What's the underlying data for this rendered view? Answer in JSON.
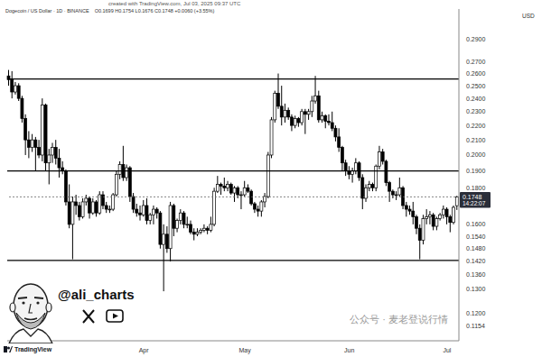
{
  "chart_data": {
    "type": "candlestick",
    "title": "Dogecoin / US Dollar · 1D · BINANCE",
    "subtitle": "created with TradingView.com, Jul 03, 2025 09:37 UTC",
    "quote": "O0.1699 H0.1754 L0.1676 C0.1748 +0.0060 (+3.55%)",
    "y_label": "USD",
    "categories": [
      null,
      null,
      null,
      null,
      null,
      null,
      null,
      null,
      null,
      null,
      null,
      null,
      null,
      null,
      null,
      null,
      null,
      null,
      null,
      null,
      null,
      null,
      null,
      null,
      null,
      null,
      null,
      null,
      null,
      null,
      null,
      null,
      null,
      null,
      null,
      null,
      null,
      null,
      null,
      null,
      "Apr",
      null,
      null,
      null,
      null,
      null,
      null,
      null,
      null,
      null,
      null,
      null,
      null,
      null,
      null,
      null,
      null,
      null,
      null,
      null,
      null,
      null,
      null,
      null,
      null,
      null,
      null,
      null,
      null,
      null,
      "May",
      null,
      null,
      null,
      null,
      null,
      null,
      null,
      null,
      null,
      null,
      null,
      null,
      null,
      null,
      null,
      null,
      null,
      null,
      null,
      null,
      null,
      null,
      null,
      null,
      null,
      null,
      null,
      null,
      null,
      null,
      "Jun",
      null,
      null,
      null,
      null,
      null,
      null,
      null,
      null,
      null,
      null,
      null,
      null,
      null,
      null,
      null,
      null,
      null,
      null,
      null,
      null,
      null,
      null,
      null,
      null,
      null,
      null,
      null,
      null,
      "Jul",
      null,
      null
    ],
    "ohlc": [
      [
        0.258,
        0.263,
        0.25,
        0.255
      ],
      [
        0.255,
        0.262,
        0.24,
        0.245
      ],
      [
        0.245,
        0.253,
        0.243,
        0.25
      ],
      [
        0.25,
        0.252,
        0.238,
        0.24
      ],
      [
        0.24,
        0.242,
        0.222,
        0.225
      ],
      [
        0.225,
        0.228,
        0.2,
        0.21
      ],
      [
        0.21,
        0.216,
        0.198,
        0.205
      ],
      [
        0.205,
        0.214,
        0.202,
        0.21
      ],
      [
        0.21,
        0.212,
        0.19,
        0.205
      ],
      [
        0.205,
        0.21,
        0.198,
        0.2
      ],
      [
        0.2,
        0.24,
        0.196,
        0.235
      ],
      [
        0.235,
        0.236,
        0.19,
        0.195
      ],
      [
        0.195,
        0.204,
        0.182,
        0.2
      ],
      [
        0.2,
        0.208,
        0.195,
        0.205
      ],
      [
        0.205,
        0.21,
        0.194,
        0.198
      ],
      [
        0.198,
        0.204,
        0.186,
        0.192
      ],
      [
        0.192,
        0.196,
        0.188,
        0.19
      ],
      [
        0.19,
        0.191,
        0.17,
        0.172
      ],
      [
        0.172,
        0.182,
        0.158,
        0.16
      ],
      [
        0.16,
        0.175,
        0.143,
        0.172
      ],
      [
        0.172,
        0.176,
        0.165,
        0.17
      ],
      [
        0.17,
        0.172,
        0.162,
        0.164
      ],
      [
        0.164,
        0.174,
        0.163,
        0.172
      ],
      [
        0.172,
        0.176,
        0.17,
        0.174
      ],
      [
        0.174,
        0.175,
        0.163,
        0.166
      ],
      [
        0.166,
        0.174,
        0.165,
        0.172
      ],
      [
        0.172,
        0.173,
        0.164,
        0.166
      ],
      [
        0.166,
        0.178,
        0.165,
        0.176
      ],
      [
        0.176,
        0.178,
        0.168,
        0.17
      ],
      [
        0.17,
        0.172,
        0.166,
        0.168
      ],
      [
        0.168,
        0.17,
        0.166,
        0.168
      ],
      [
        0.168,
        0.177,
        0.167,
        0.176
      ],
      [
        0.176,
        0.19,
        0.175,
        0.188
      ],
      [
        0.188,
        0.196,
        0.185,
        0.194
      ],
      [
        0.194,
        0.206,
        0.184,
        0.186
      ],
      [
        0.186,
        0.194,
        0.184,
        0.192
      ],
      [
        0.192,
        0.193,
        0.172,
        0.175
      ],
      [
        0.175,
        0.177,
        0.166,
        0.168
      ],
      [
        0.168,
        0.171,
        0.164,
        0.166
      ],
      [
        0.166,
        0.17,
        0.162,
        0.165
      ],
      [
        0.165,
        0.173,
        0.164,
        0.17
      ],
      [
        0.17,
        0.174,
        0.16,
        0.162
      ],
      [
        0.162,
        0.166,
        0.16,
        0.165
      ],
      [
        0.165,
        0.17,
        0.16,
        0.168
      ],
      [
        0.168,
        0.169,
        0.163,
        0.166
      ],
      [
        0.166,
        0.167,
        0.148,
        0.15
      ],
      [
        0.15,
        0.16,
        0.129,
        0.155
      ],
      [
        0.155,
        0.159,
        0.146,
        0.148
      ],
      [
        0.148,
        0.172,
        0.142,
        0.17
      ],
      [
        0.17,
        0.171,
        0.154,
        0.158
      ],
      [
        0.158,
        0.163,
        0.156,
        0.162
      ],
      [
        0.162,
        0.168,
        0.16,
        0.166
      ],
      [
        0.166,
        0.167,
        0.158,
        0.16
      ],
      [
        0.16,
        0.164,
        0.158,
        0.16
      ],
      [
        0.16,
        0.162,
        0.155,
        0.156
      ],
      [
        0.156,
        0.158,
        0.152,
        0.155
      ],
      [
        0.155,
        0.158,
        0.154,
        0.156
      ],
      [
        0.156,
        0.158,
        0.155,
        0.157
      ],
      [
        0.157,
        0.16,
        0.156,
        0.158
      ],
      [
        0.158,
        0.159,
        0.155,
        0.157
      ],
      [
        0.157,
        0.164,
        0.156,
        0.16
      ],
      [
        0.16,
        0.18,
        0.159,
        0.178
      ],
      [
        0.178,
        0.187,
        0.177,
        0.182
      ],
      [
        0.182,
        0.183,
        0.176,
        0.181
      ],
      [
        0.181,
        0.186,
        0.178,
        0.18
      ],
      [
        0.18,
        0.184,
        0.178,
        0.182
      ],
      [
        0.182,
        0.183,
        0.176,
        0.177
      ],
      [
        0.177,
        0.181,
        0.172,
        0.18
      ],
      [
        0.18,
        0.181,
        0.174,
        0.176
      ],
      [
        0.176,
        0.178,
        0.168,
        0.176
      ],
      [
        0.176,
        0.184,
        0.175,
        0.18
      ],
      [
        0.18,
        0.182,
        0.177,
        0.178
      ],
      [
        0.178,
        0.179,
        0.17,
        0.171
      ],
      [
        0.171,
        0.172,
        0.166,
        0.168
      ],
      [
        0.168,
        0.17,
        0.164,
        0.167
      ],
      [
        0.167,
        0.173,
        0.164,
        0.172
      ],
      [
        0.172,
        0.177,
        0.169,
        0.175
      ],
      [
        0.175,
        0.202,
        0.174,
        0.2
      ],
      [
        0.2,
        0.226,
        0.198,
        0.224
      ],
      [
        0.224,
        0.246,
        0.222,
        0.244
      ],
      [
        0.244,
        0.26,
        0.232,
        0.234
      ],
      [
        0.234,
        0.25,
        0.22,
        0.226
      ],
      [
        0.226,
        0.236,
        0.222,
        0.231
      ],
      [
        0.231,
        0.233,
        0.224,
        0.226
      ],
      [
        0.226,
        0.228,
        0.216,
        0.22
      ],
      [
        0.22,
        0.227,
        0.218,
        0.225
      ],
      [
        0.225,
        0.226,
        0.219,
        0.222
      ],
      [
        0.222,
        0.232,
        0.22,
        0.23
      ],
      [
        0.23,
        0.232,
        0.214,
        0.228
      ],
      [
        0.228,
        0.232,
        0.224,
        0.23
      ],
      [
        0.23,
        0.242,
        0.226,
        0.238
      ],
      [
        0.238,
        0.258,
        0.236,
        0.242
      ],
      [
        0.242,
        0.246,
        0.222,
        0.224
      ],
      [
        0.224,
        0.23,
        0.222,
        0.227
      ],
      [
        0.227,
        0.228,
        0.218,
        0.223
      ],
      [
        0.223,
        0.228,
        0.22,
        0.222
      ],
      [
        0.222,
        0.23,
        0.216,
        0.218
      ],
      [
        0.218,
        0.22,
        0.209,
        0.212
      ],
      [
        0.212,
        0.218,
        0.202,
        0.205
      ],
      [
        0.205,
        0.206,
        0.19,
        0.195
      ],
      [
        0.195,
        0.197,
        0.187,
        0.19
      ],
      [
        0.19,
        0.193,
        0.185,
        0.188
      ],
      [
        0.188,
        0.192,
        0.183,
        0.19
      ],
      [
        0.19,
        0.198,
        0.188,
        0.195
      ],
      [
        0.195,
        0.196,
        0.184,
        0.186
      ],
      [
        0.186,
        0.188,
        0.168,
        0.174
      ],
      [
        0.174,
        0.182,
        0.172,
        0.18
      ],
      [
        0.18,
        0.184,
        0.178,
        0.182
      ],
      [
        0.182,
        0.183,
        0.178,
        0.18
      ],
      [
        0.18,
        0.194,
        0.178,
        0.193
      ],
      [
        0.193,
        0.206,
        0.191,
        0.202
      ],
      [
        0.202,
        0.204,
        0.194,
        0.196
      ],
      [
        0.196,
        0.197,
        0.181,
        0.183
      ],
      [
        0.183,
        0.184,
        0.172,
        0.178
      ],
      [
        0.178,
        0.179,
        0.174,
        0.176
      ],
      [
        0.176,
        0.178,
        0.173,
        0.176
      ],
      [
        0.176,
        0.186,
        0.175,
        0.18
      ],
      [
        0.18,
        0.181,
        0.168,
        0.17
      ],
      [
        0.17,
        0.172,
        0.164,
        0.168
      ],
      [
        0.168,
        0.17,
        0.165,
        0.167
      ],
      [
        0.167,
        0.172,
        0.16,
        0.164
      ],
      [
        0.164,
        0.165,
        0.155,
        0.158
      ],
      [
        0.158,
        0.16,
        0.143,
        0.152
      ],
      [
        0.152,
        0.165,
        0.15,
        0.163
      ],
      [
        0.163,
        0.168,
        0.16,
        0.164
      ],
      [
        0.164,
        0.167,
        0.16,
        0.165
      ],
      [
        0.165,
        0.166,
        0.157,
        0.159
      ],
      [
        0.159,
        0.164,
        0.157,
        0.163
      ],
      [
        0.163,
        0.166,
        0.162,
        0.165
      ],
      [
        0.165,
        0.17,
        0.163,
        0.168
      ],
      [
        0.168,
        0.169,
        0.16,
        0.164
      ],
      [
        0.164,
        0.165,
        0.156,
        0.161
      ],
      [
        0.161,
        0.17,
        0.16,
        0.169
      ],
      [
        0.1699,
        0.1754,
        0.1676,
        0.1748
      ]
    ],
    "color": "#000000",
    "ylim": [
      0.11,
      0.32
    ],
    "yticks": [
      {
        "value": 0.29,
        "label": "0.2900"
      },
      {
        "value": 0.27,
        "label": "0.2700"
      },
      {
        "value": 0.26,
        "label": "0.2600"
      },
      {
        "value": 0.25,
        "label": "0.2500"
      },
      {
        "value": 0.24,
        "label": "0.2400"
      },
      {
        "value": 0.23,
        "label": "0.2300"
      },
      {
        "value": 0.22,
        "label": "0.2200"
      },
      {
        "value": 0.21,
        "label": "0.2100"
      },
      {
        "value": 0.2,
        "label": "0.2000"
      },
      {
        "value": 0.19,
        "label": "0.1900"
      },
      {
        "value": 0.18,
        "label": "0.1800"
      },
      {
        "value": 0.16,
        "label": "0.1600"
      },
      {
        "value": 0.154,
        "label": "0.1540"
      },
      {
        "value": 0.148,
        "label": "0.1480"
      },
      {
        "value": 0.142,
        "label": "0.1420"
      },
      {
        "value": 0.136,
        "label": "0.1360"
      },
      {
        "value": 0.13,
        "label": "0.1300"
      },
      {
        "value": 0.12,
        "label": "0.1200"
      },
      0.1154
    ],
    "log": "y",
    "grid": false,
    "levels": [
      0.2555,
      0.19,
      0.1425
    ],
    "last_price": {
      "value": 0.1748,
      "label": "0.1748",
      "countdown": "14:22:07"
    },
    "handle": "@ali_charts",
    "watermark": "公众号 · 麦老登说行情",
    "logo": "TradingView"
  }
}
